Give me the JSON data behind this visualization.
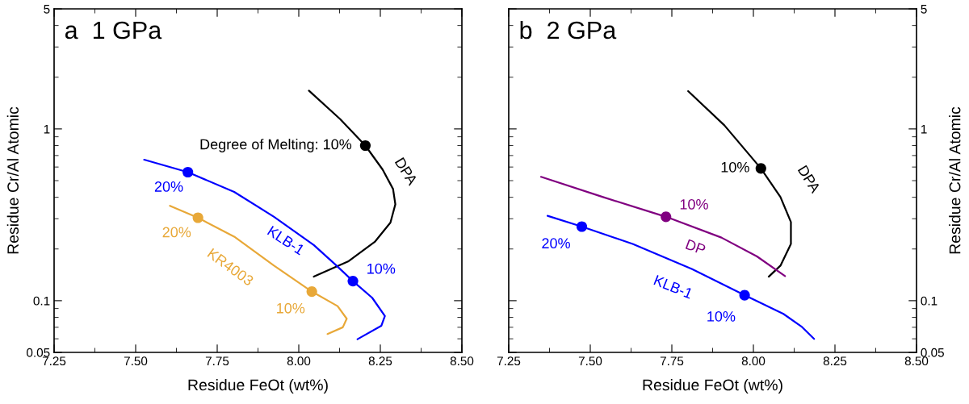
{
  "chart_data": [
    {
      "type": "line",
      "title": "a  1 GPa",
      "xlabel": "Residue FeOt (wt%)",
      "ylabel": "Residue Cr/Al Atomic",
      "log": "y",
      "xlim": [
        7.25,
        8.5
      ],
      "xticks": [
        {
          "value": 7.25,
          "label": "7.25"
        },
        {
          "value": 7.5,
          "label": "7.50"
        },
        {
          "value": 7.75,
          "label": "7.75"
        },
        {
          "value": 8.0,
          "label": "8.00"
        },
        {
          "value": 8.25,
          "label": "8.25"
        },
        {
          "value": 8.5,
          "label": "8.50"
        }
      ],
      "ylim": [
        0.05,
        5
      ],
      "yticks": [
        0.05,
        0.1,
        1,
        5
      ],
      "grid": false,
      "legend": false,
      "series": [
        {
          "name": "DPA",
          "color": "#000000",
          "x": [
            8.031,
            8.127,
            8.204,
            8.257,
            8.289,
            8.296,
            8.281,
            8.233,
            8.151,
            8.046
          ],
          "values": [
            1.67,
            1.14,
            0.8,
            0.58,
            0.447,
            0.364,
            0.285,
            0.22,
            0.169,
            0.138
          ]
        },
        {
          "name": "KLB-1",
          "color": "#0000ff",
          "x": [
            7.526,
            7.66,
            7.802,
            7.924,
            8.046,
            8.111,
            8.166,
            8.225,
            8.264,
            8.253,
            8.18
          ],
          "values": [
            0.662,
            0.56,
            0.43,
            0.308,
            0.211,
            0.163,
            0.13,
            0.104,
            0.0814,
            0.0714,
            0.0597
          ]
        },
        {
          "name": "KR4003",
          "color": "#e8a838",
          "x": [
            7.605,
            7.691,
            7.802,
            7.924,
            8.04,
            8.119,
            8.147,
            8.135,
            8.088
          ],
          "values": [
            0.357,
            0.304,
            0.236,
            0.16,
            0.113,
            0.093,
            0.0785,
            0.07,
            0.064
          ]
        },
        {
          "type": "scatter",
          "marker": "circle",
          "colors": [
            "#000000",
            "#0000ff",
            "#0000ff",
            "#e8a838",
            "#e8a838"
          ],
          "x": [
            8.204,
            7.66,
            8.166,
            7.691,
            8.04
          ],
          "values": [
            0.8,
            0.56,
            0.13,
            0.304,
            0.113
          ]
        }
      ],
      "annotations": [
        {
          "text": "Degree of Melting: 10%",
          "x": 8.204,
          "y": 0.8
        },
        {
          "text": "20%",
          "x": 7.66,
          "y": 0.56
        },
        {
          "text": "10%",
          "x": 8.166,
          "y": 0.13
        },
        {
          "text": "20%",
          "x": 7.691,
          "y": 0.304
        },
        {
          "text": "10%",
          "x": 8.04,
          "y": 0.113
        }
      ]
    },
    {
      "type": "line",
      "title": "b  2 GPa",
      "xlabel": "Residue FeOt (wt%)",
      "ylabel": "Residue Cr/Al Atomic",
      "log": "y",
      "xlim": [
        7.25,
        8.5
      ],
      "xticks": [
        {
          "value": 7.25,
          "label": "7.25"
        },
        {
          "value": 7.5,
          "label": "7.50"
        },
        {
          "value": 7.75,
          "label": "7.75"
        },
        {
          "value": 8.0,
          "label": "8.00"
        },
        {
          "value": 8.25,
          "label": "8.25"
        },
        {
          "value": 8.5,
          "label": "8.50"
        }
      ],
      "ylim": [
        0.05,
        5
      ],
      "yticks": [
        0.05,
        0.1,
        1,
        5
      ],
      "grid": false,
      "legend": false,
      "series": [
        {
          "name": "DPA",
          "color": "#000000",
          "x": [
            7.8,
            7.911,
            8.023,
            8.083,
            8.115,
            8.115,
            8.083,
            8.047
          ],
          "values": [
            1.66,
            1.05,
            0.589,
            0.401,
            0.287,
            0.214,
            0.16,
            0.138
          ]
        },
        {
          "name": "DP",
          "color": "#800080",
          "x": [
            7.349,
            7.539,
            7.732,
            7.902,
            8.011,
            8.097
          ],
          "values": [
            0.526,
            0.401,
            0.308,
            0.233,
            0.181,
            0.139
          ]
        },
        {
          "name": "KLB-1",
          "color": "#0000ff",
          "x": [
            7.369,
            7.474,
            7.63,
            7.811,
            7.973,
            8.092,
            8.147,
            8.186
          ],
          "values": [
            0.312,
            0.27,
            0.214,
            0.153,
            0.1076,
            0.0838,
            0.0708,
            0.0599
          ]
        },
        {
          "type": "scatter",
          "marker": "circle",
          "colors": [
            "#000000",
            "#800080",
            "#0000ff",
            "#0000ff"
          ],
          "x": [
            8.023,
            7.732,
            7.474,
            7.973
          ],
          "values": [
            0.589,
            0.308,
            0.27,
            0.1076
          ]
        }
      ],
      "annotations": [
        {
          "text": "10%",
          "x": 8.023,
          "y": 0.589
        },
        {
          "text": "10%",
          "x": 7.732,
          "y": 0.308
        },
        {
          "text": "20%",
          "x": 7.474,
          "y": 0.27
        },
        {
          "text": "10%",
          "x": 7.973,
          "y": 0.1076
        }
      ]
    }
  ]
}
